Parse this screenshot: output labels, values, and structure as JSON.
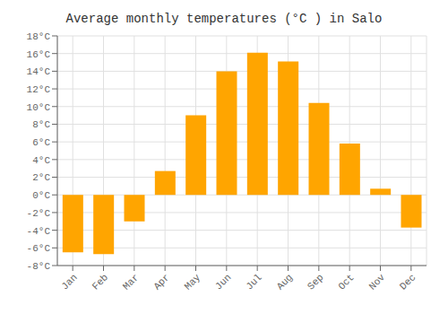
{
  "chart_data": {
    "type": "bar",
    "title": "Average monthly temperatures (°C ) in Salo",
    "categories": [
      "Jan",
      "Feb",
      "Mar",
      "Apr",
      "May",
      "Jun",
      "Jul",
      "Aug",
      "Sep",
      "Oct",
      "Nov",
      "Dec"
    ],
    "values": [
      -6.5,
      -6.7,
      -3.0,
      2.7,
      9.0,
      14.0,
      16.1,
      15.1,
      10.4,
      5.8,
      0.7,
      -3.7
    ],
    "color": "#FFA500",
    "ylim": [
      -8,
      18
    ],
    "yticks": [
      {
        "value": -8,
        "label": "-8°C"
      },
      {
        "value": -6,
        "label": "-6°C"
      },
      {
        "value": -4,
        "label": "-4°C"
      },
      {
        "value": -2,
        "label": "-2°C"
      },
      {
        "value": 0,
        "label": "0°C"
      },
      {
        "value": 2,
        "label": "2°C"
      },
      {
        "value": 4,
        "label": "4°C"
      },
      {
        "value": 6,
        "label": "6°C"
      },
      {
        "value": 8,
        "label": "8°C"
      },
      {
        "value": 10,
        "label": "10°C"
      },
      {
        "value": 12,
        "label": "12°C"
      },
      {
        "value": 14,
        "label": "14°C"
      },
      {
        "value": 16,
        "label": "16°C"
      },
      {
        "value": 18,
        "label": "18°C"
      }
    ],
    "grid": true
  }
}
